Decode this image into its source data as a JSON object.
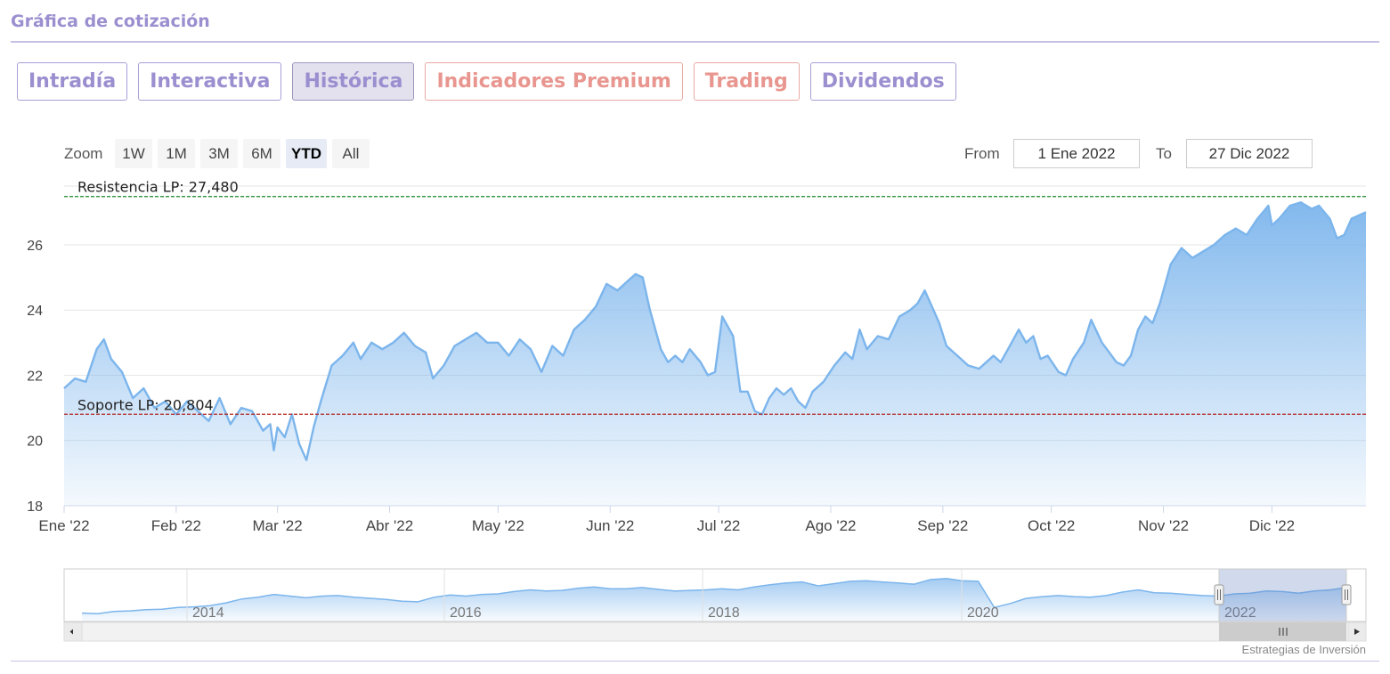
{
  "section_title": "Gráfica de cotización",
  "tabs": [
    {
      "label": "Intradía",
      "active": false,
      "premium": false
    },
    {
      "label": "Interactiva",
      "active": false,
      "premium": false
    },
    {
      "label": "Histórica",
      "active": true,
      "premium": false
    },
    {
      "label": "Indicadores Premium",
      "active": false,
      "premium": true
    },
    {
      "label": "Trading",
      "active": false,
      "premium": true
    },
    {
      "label": "Dividendos",
      "active": false,
      "premium": false
    }
  ],
  "zoom": {
    "label": "Zoom",
    "buttons": [
      "1W",
      "1M",
      "3M",
      "6M",
      "YTD",
      "All"
    ],
    "selected": "YTD"
  },
  "range": {
    "from_label": "From",
    "from_value": "1 Ene 2022",
    "to_label": "To",
    "to_value": "27 Dic 2022"
  },
  "credit": "Estrategias de Inversión",
  "colors": {
    "accent": "#9b8fd0",
    "premium": "#e8968f",
    "series_line": "#7cb5ec",
    "resistance": "#1a8a2a",
    "support": "#b22222"
  },
  "chart_data": {
    "type": "area",
    "ylim": [
      18,
      27.8
    ],
    "yticks": [
      18,
      20,
      22,
      24,
      26
    ],
    "ytick_labels": [
      "18",
      "20",
      "22",
      "24",
      "26"
    ],
    "xticks": [
      {
        "date": "2022-01-01",
        "label": "Ene '22"
      },
      {
        "date": "2022-02-01",
        "label": "Feb '22"
      },
      {
        "date": "2022-03-01",
        "label": "Mar '22"
      },
      {
        "date": "2022-04-01",
        "label": "Abr '22"
      },
      {
        "date": "2022-05-01",
        "label": "May '22"
      },
      {
        "date": "2022-06-01",
        "label": "Jun '22"
      },
      {
        "date": "2022-07-01",
        "label": "Jul '22"
      },
      {
        "date": "2022-08-01",
        "label": "Ago '22"
      },
      {
        "date": "2022-09-01",
        "label": "Sep '22"
      },
      {
        "date": "2022-10-01",
        "label": "Oct '22"
      },
      {
        "date": "2022-11-01",
        "label": "Nov '22"
      },
      {
        "date": "2022-12-01",
        "label": "Dic '22"
      }
    ],
    "x_range": [
      "2022-01-01",
      "2022-12-27"
    ],
    "grid": true,
    "lines": [
      {
        "label": "Resistencia LP: 27,480",
        "value": 27.48,
        "style": "dashed",
        "color": "#1a8a2a"
      },
      {
        "label": "Soporte LP: 20,804",
        "value": 20.804,
        "style": "dashed",
        "color": "#b22222"
      }
    ],
    "series": [
      {
        "points": [
          [
            "2022-01-01",
            21.6
          ],
          [
            "2022-01-04",
            21.9
          ],
          [
            "2022-01-07",
            21.8
          ],
          [
            "2022-01-10",
            22.8
          ],
          [
            "2022-01-12",
            23.1
          ],
          [
            "2022-01-14",
            22.5
          ],
          [
            "2022-01-17",
            22.1
          ],
          [
            "2022-01-20",
            21.3
          ],
          [
            "2022-01-23",
            21.6
          ],
          [
            "2022-01-26",
            21.0
          ],
          [
            "2022-01-29",
            21.2
          ],
          [
            "2022-02-01",
            20.8
          ],
          [
            "2022-02-04",
            21.2
          ],
          [
            "2022-02-07",
            20.9
          ],
          [
            "2022-02-10",
            20.6
          ],
          [
            "2022-02-13",
            21.3
          ],
          [
            "2022-02-16",
            20.5
          ],
          [
            "2022-02-19",
            21.0
          ],
          [
            "2022-02-22",
            20.9
          ],
          [
            "2022-02-25",
            20.3
          ],
          [
            "2022-02-27",
            20.5
          ],
          [
            "2022-02-28",
            19.7
          ],
          [
            "2022-03-01",
            20.4
          ],
          [
            "2022-03-03",
            20.1
          ],
          [
            "2022-03-05",
            20.8
          ],
          [
            "2022-03-07",
            19.9
          ],
          [
            "2022-03-09",
            19.4
          ],
          [
            "2022-03-11",
            20.4
          ],
          [
            "2022-03-13",
            21.2
          ],
          [
            "2022-03-16",
            22.3
          ],
          [
            "2022-03-19",
            22.6
          ],
          [
            "2022-03-22",
            23.0
          ],
          [
            "2022-03-24",
            22.5
          ],
          [
            "2022-03-27",
            23.0
          ],
          [
            "2022-03-30",
            22.8
          ],
          [
            "2022-04-02",
            23.0
          ],
          [
            "2022-04-05",
            23.3
          ],
          [
            "2022-04-08",
            22.9
          ],
          [
            "2022-04-11",
            22.7
          ],
          [
            "2022-04-13",
            21.9
          ],
          [
            "2022-04-16",
            22.3
          ],
          [
            "2022-04-19",
            22.9
          ],
          [
            "2022-04-22",
            23.1
          ],
          [
            "2022-04-25",
            23.3
          ],
          [
            "2022-04-28",
            23.0
          ],
          [
            "2022-05-01",
            23.0
          ],
          [
            "2022-05-04",
            22.6
          ],
          [
            "2022-05-07",
            23.1
          ],
          [
            "2022-05-10",
            22.8
          ],
          [
            "2022-05-13",
            22.1
          ],
          [
            "2022-05-16",
            22.9
          ],
          [
            "2022-05-19",
            22.6
          ],
          [
            "2022-05-22",
            23.4
          ],
          [
            "2022-05-25",
            23.7
          ],
          [
            "2022-05-28",
            24.1
          ],
          [
            "2022-05-31",
            24.8
          ],
          [
            "2022-06-03",
            24.6
          ],
          [
            "2022-06-06",
            24.9
          ],
          [
            "2022-06-08",
            25.1
          ],
          [
            "2022-06-10",
            25.0
          ],
          [
            "2022-06-12",
            24.0
          ],
          [
            "2022-06-15",
            22.8
          ],
          [
            "2022-06-17",
            22.4
          ],
          [
            "2022-06-19",
            22.6
          ],
          [
            "2022-06-21",
            22.4
          ],
          [
            "2022-06-23",
            22.8
          ],
          [
            "2022-06-26",
            22.4
          ],
          [
            "2022-06-28",
            22.0
          ],
          [
            "2022-06-30",
            22.1
          ],
          [
            "2022-07-02",
            23.8
          ],
          [
            "2022-07-05",
            23.2
          ],
          [
            "2022-07-07",
            21.5
          ],
          [
            "2022-07-09",
            21.5
          ],
          [
            "2022-07-11",
            20.9
          ],
          [
            "2022-07-13",
            20.8
          ],
          [
            "2022-07-15",
            21.3
          ],
          [
            "2022-07-17",
            21.6
          ],
          [
            "2022-07-19",
            21.4
          ],
          [
            "2022-07-21",
            21.6
          ],
          [
            "2022-07-23",
            21.2
          ],
          [
            "2022-07-25",
            21.0
          ],
          [
            "2022-07-27",
            21.5
          ],
          [
            "2022-07-30",
            21.8
          ],
          [
            "2022-08-02",
            22.3
          ],
          [
            "2022-08-05",
            22.7
          ],
          [
            "2022-08-07",
            22.5
          ],
          [
            "2022-08-09",
            23.4
          ],
          [
            "2022-08-11",
            22.8
          ],
          [
            "2022-08-14",
            23.2
          ],
          [
            "2022-08-17",
            23.1
          ],
          [
            "2022-08-20",
            23.8
          ],
          [
            "2022-08-23",
            24.0
          ],
          [
            "2022-08-25",
            24.2
          ],
          [
            "2022-08-27",
            24.6
          ],
          [
            "2022-08-29",
            24.1
          ],
          [
            "2022-08-31",
            23.6
          ],
          [
            "2022-09-02",
            22.9
          ],
          [
            "2022-09-05",
            22.6
          ],
          [
            "2022-09-08",
            22.3
          ],
          [
            "2022-09-11",
            22.2
          ],
          [
            "2022-09-13",
            22.4
          ],
          [
            "2022-09-15",
            22.6
          ],
          [
            "2022-09-17",
            22.4
          ],
          [
            "2022-09-19",
            22.8
          ],
          [
            "2022-09-22",
            23.4
          ],
          [
            "2022-09-24",
            23.0
          ],
          [
            "2022-09-26",
            23.2
          ],
          [
            "2022-09-28",
            22.5
          ],
          [
            "2022-09-30",
            22.6
          ],
          [
            "2022-10-03",
            22.1
          ],
          [
            "2022-10-05",
            22.0
          ],
          [
            "2022-10-07",
            22.5
          ],
          [
            "2022-10-10",
            23.0
          ],
          [
            "2022-10-12",
            23.7
          ],
          [
            "2022-10-15",
            23.0
          ],
          [
            "2022-10-17",
            22.7
          ],
          [
            "2022-10-19",
            22.4
          ],
          [
            "2022-10-21",
            22.3
          ],
          [
            "2022-10-23",
            22.6
          ],
          [
            "2022-10-25",
            23.4
          ],
          [
            "2022-10-27",
            23.8
          ],
          [
            "2022-10-29",
            23.6
          ],
          [
            "2022-10-31",
            24.2
          ],
          [
            "2022-11-03",
            25.4
          ],
          [
            "2022-11-06",
            25.9
          ],
          [
            "2022-11-09",
            25.6
          ],
          [
            "2022-11-12",
            25.8
          ],
          [
            "2022-11-15",
            26.0
          ],
          [
            "2022-11-18",
            26.3
          ],
          [
            "2022-11-21",
            26.5
          ],
          [
            "2022-11-24",
            26.3
          ],
          [
            "2022-11-27",
            26.8
          ],
          [
            "2022-11-30",
            27.2
          ],
          [
            "2022-12-01",
            26.6
          ],
          [
            "2022-12-03",
            26.8
          ],
          [
            "2022-12-06",
            27.2
          ],
          [
            "2022-12-09",
            27.3
          ],
          [
            "2022-12-12",
            27.1
          ],
          [
            "2022-12-14",
            27.2
          ],
          [
            "2022-12-17",
            26.8
          ],
          [
            "2022-12-19",
            26.2
          ],
          [
            "2022-12-21",
            26.3
          ],
          [
            "2022-12-23",
            26.8
          ],
          [
            "2022-12-27",
            27.0
          ]
        ]
      }
    ],
    "navigator": {
      "year_labels": [
        "2014",
        "2016",
        "2018",
        "2020",
        "2022"
      ],
      "values": [
        18.5,
        18.4,
        18.8,
        18.9,
        19.1,
        19.2,
        19.5,
        19.6,
        19.8,
        20.3,
        21.0,
        21.3,
        21.8,
        21.5,
        21.2,
        21.5,
        21.6,
        21.3,
        21.1,
        20.9,
        20.6,
        20.5,
        21.3,
        21.7,
        21.5,
        21.8,
        21.9,
        22.3,
        22.6,
        22.4,
        22.5,
        22.9,
        23.1,
        22.8,
        22.8,
        23.0,
        22.7,
        22.4,
        22.5,
        22.6,
        22.8,
        22.6,
        23.1,
        23.5,
        23.8,
        24.0,
        23.3,
        23.7,
        24.1,
        24.2,
        24.0,
        23.8,
        23.6,
        24.4,
        24.6,
        24.2,
        24.1,
        19.5,
        20.2,
        21.1,
        21.4,
        21.6,
        21.4,
        21.3,
        21.6,
        22.2,
        22.6,
        22.1,
        22.0,
        21.8,
        21.6,
        21.5,
        21.9,
        22.0,
        22.4,
        22.3,
        22.0,
        22.4,
        22.6,
        23.0
      ]
    }
  }
}
